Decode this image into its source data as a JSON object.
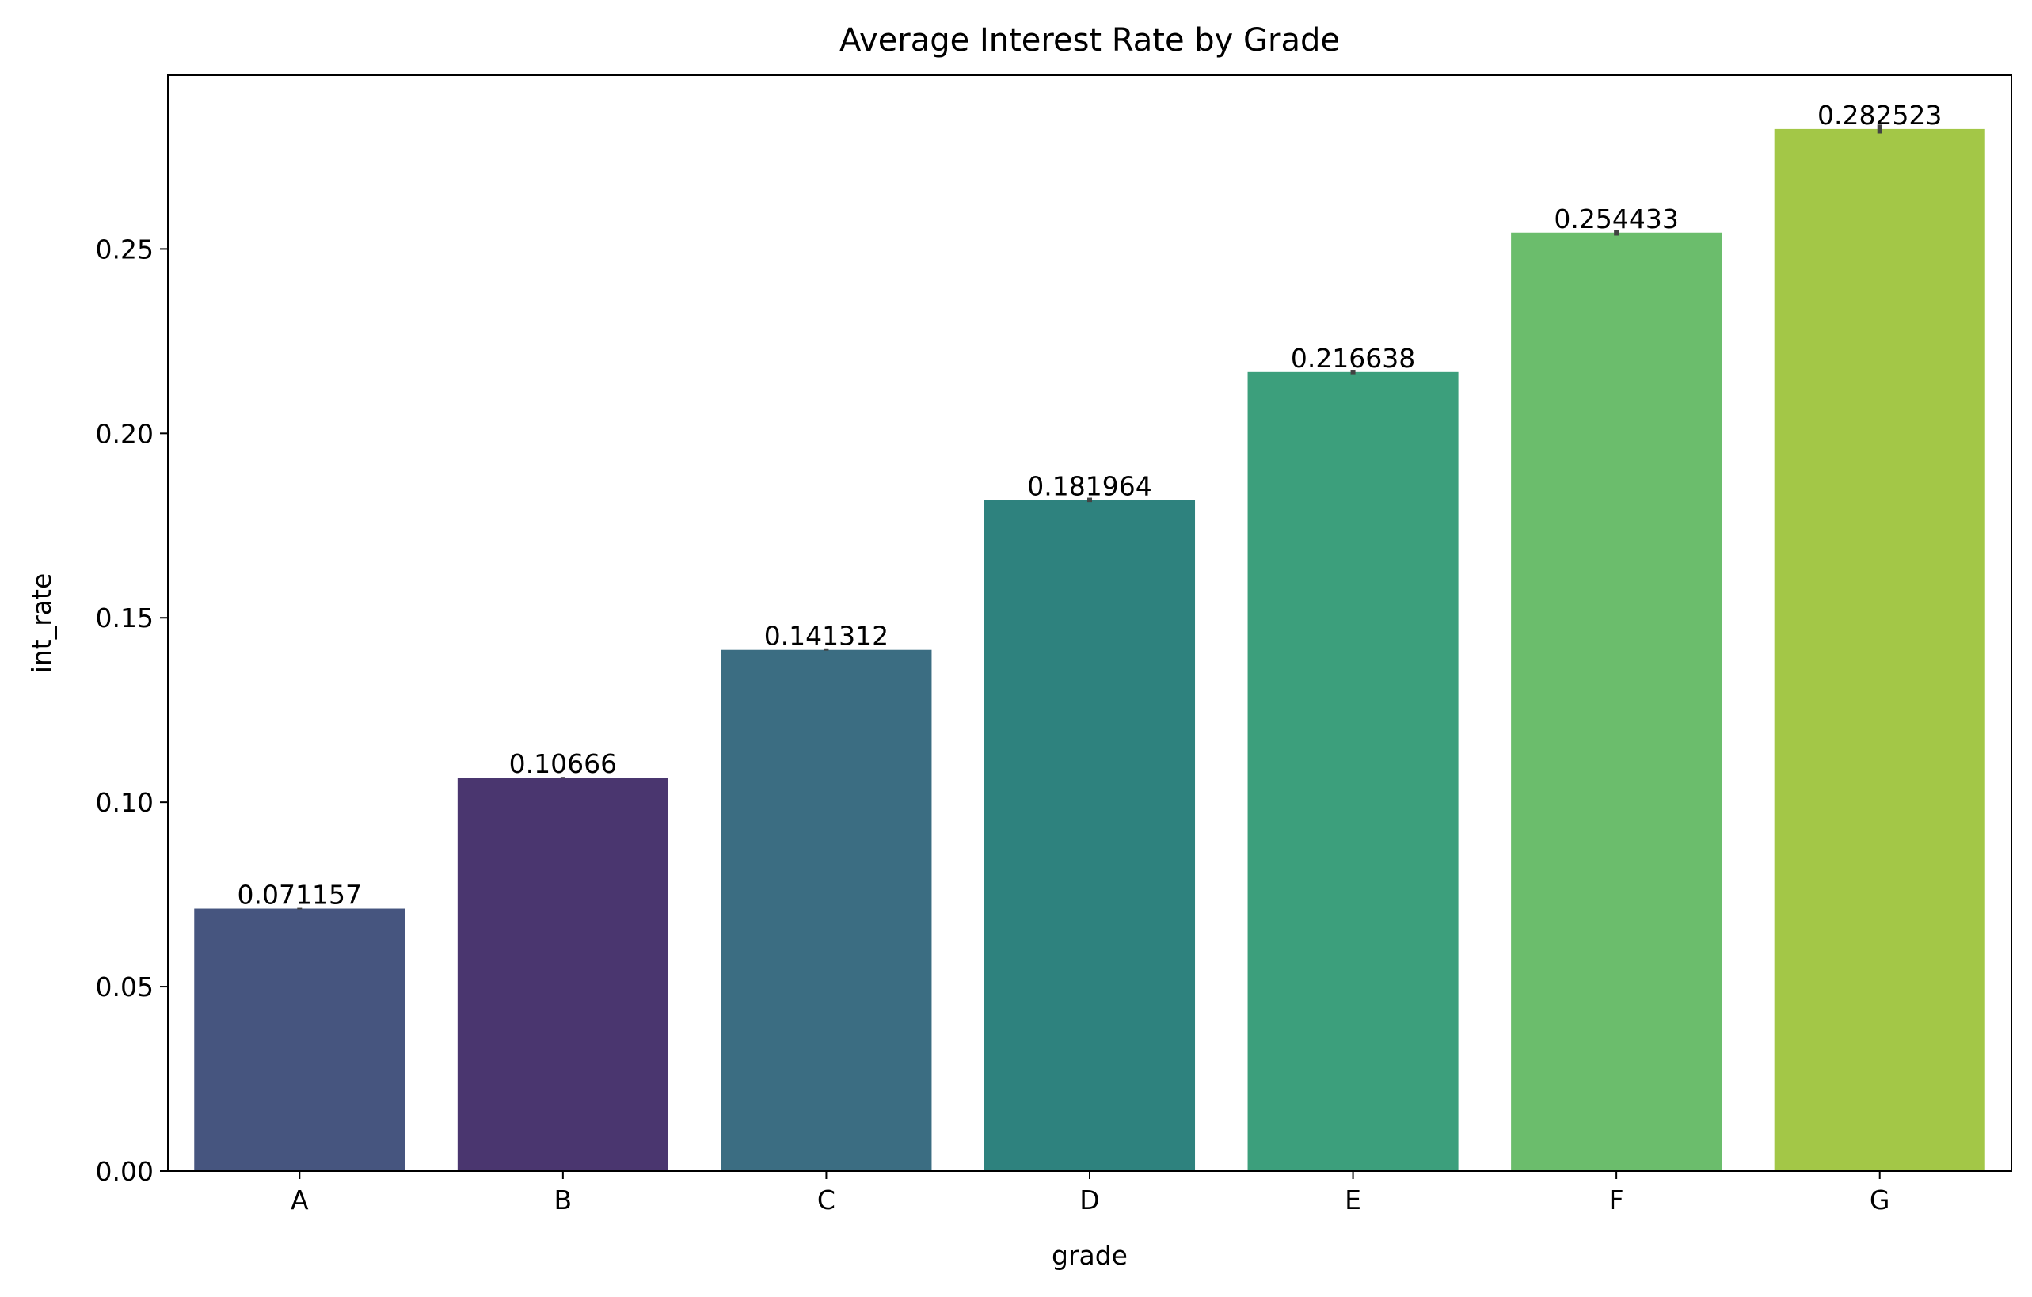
{
  "chart_data": {
    "type": "bar",
    "title": "Average Interest Rate by Grade",
    "xlabel": "grade",
    "ylabel": "int_rate",
    "categories": [
      "A",
      "B",
      "C",
      "D",
      "E",
      "F",
      "G"
    ],
    "values": [
      0.071157,
      0.10666,
      0.141312,
      0.181964,
      0.216638,
      0.254433,
      0.282523
    ],
    "value_labels": [
      "0.071157",
      "0.10666",
      "0.141312",
      "0.181964",
      "0.216638",
      "0.254433",
      "0.282523"
    ],
    "error_half_width": [
      0.0002,
      0.0002,
      0.0002,
      0.0006,
      0.0006,
      0.0008,
      0.0012
    ],
    "colors": [
      "#46557f",
      "#4a366f",
      "#3b6d82",
      "#2e827e",
      "#3c9f7c",
      "#6bbd6c",
      "#a3c747"
    ],
    "errorbar_color": "#424242",
    "ylim": [
      0,
      0.2971
    ],
    "yticks": [
      0.0,
      0.05,
      0.1,
      0.15,
      0.2,
      0.25
    ],
    "ytick_labels": [
      "0.00",
      "0.05",
      "0.10",
      "0.15",
      "0.20",
      "0.25"
    ],
    "grid": false,
    "legend": "none"
  }
}
